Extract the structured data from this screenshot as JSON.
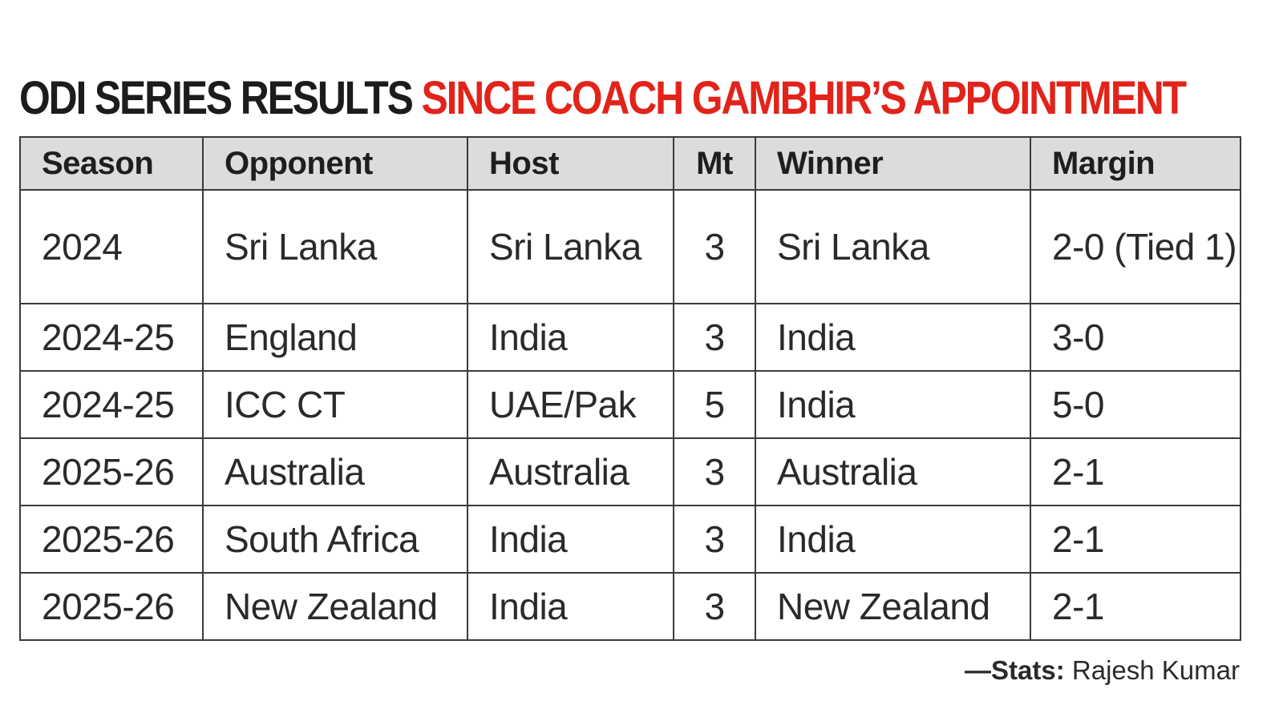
{
  "headline": {
    "dark": "ODI SERIES RESULTS",
    "red": "SINCE COACH GAMBHIR’S APPOINTMENT"
  },
  "colors": {
    "headline_red": "#e2231a",
    "header_bg": "#dcdcdc",
    "border": "#3a3a3a"
  },
  "table": {
    "headers": {
      "season": "Season",
      "opponent": "Opponent",
      "host": "Host",
      "mt": "Mt",
      "winner": "Winner",
      "margin": "Margin"
    },
    "rows": [
      {
        "season": "2024",
        "opponent": "Sri Lanka",
        "host": "Sri Lanka",
        "mt": "3",
        "winner": "Sri Lanka",
        "margin": "2-0 (Tied 1)"
      },
      {
        "season": "2024-25",
        "opponent": "England",
        "host": "India",
        "mt": "3",
        "winner": "India",
        "margin": "3-0"
      },
      {
        "season": "2024-25",
        "opponent": "ICC CT",
        "host": "UAE/Pak",
        "mt": "5",
        "winner": "India",
        "margin": "5-0"
      },
      {
        "season": "2025-26",
        "opponent": "Australia",
        "host": "Australia",
        "mt": "3",
        "winner": "Australia",
        "margin": "2-1"
      },
      {
        "season": "2025-26",
        "opponent": "South Africa",
        "host": "India",
        "mt": "3",
        "winner": "India",
        "margin": "2-1"
      },
      {
        "season": "2025-26",
        "opponent": "New Zealand",
        "host": "India",
        "mt": "3",
        "winner": "New Zealand",
        "margin": "2-1"
      }
    ]
  },
  "credit": {
    "label": "—Stats:",
    "name": "Rajesh Kumar"
  }
}
